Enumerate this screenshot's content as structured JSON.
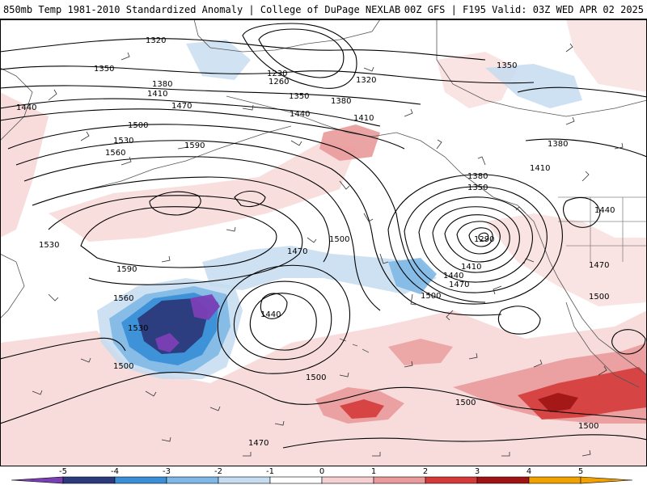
{
  "header": {
    "title_left": "850mb Temp 1981-2010 Standardized Anomaly | College of DuPage NEXLAB",
    "title_right": "00Z GFS | F195 Valid: 03Z WED APR 02 2025"
  },
  "contour_labels": [
    {
      "id": "h1320a",
      "text": "1320"
    },
    {
      "id": "h1350a",
      "text": "1350"
    },
    {
      "id": "h1230",
      "text": "1230"
    },
    {
      "id": "h1260",
      "text": "1260"
    },
    {
      "id": "h1320b",
      "text": "1320"
    },
    {
      "id": "h1350b",
      "text": "1350"
    },
    {
      "id": "h1380a",
      "text": "1380"
    },
    {
      "id": "h1410a",
      "text": "1410"
    },
    {
      "id": "h1440a",
      "text": "1440"
    },
    {
      "id": "h1470a",
      "text": "1470"
    },
    {
      "id": "h1350c",
      "text": "1350"
    },
    {
      "id": "h1380b",
      "text": "1380"
    },
    {
      "id": "h1440b",
      "text": "1440"
    },
    {
      "id": "h1410b",
      "text": "1410"
    },
    {
      "id": "h1500a",
      "text": "1500"
    },
    {
      "id": "h1530a",
      "text": "1530"
    },
    {
      "id": "h1560a",
      "text": "1560"
    },
    {
      "id": "h1590a",
      "text": "1590"
    },
    {
      "id": "h1380c",
      "text": "1380"
    },
    {
      "id": "h1410c",
      "text": "1410"
    },
    {
      "id": "h1380d",
      "text": "1380"
    },
    {
      "id": "h1350d",
      "text": "1350"
    },
    {
      "id": "h1440c",
      "text": "1440"
    },
    {
      "id": "h1290",
      "text": "1290"
    },
    {
      "id": "h1530b",
      "text": "1530"
    },
    {
      "id": "h1500b",
      "text": "1500"
    },
    {
      "id": "h1590b",
      "text": "1590"
    },
    {
      "id": "h1470b",
      "text": "1470"
    },
    {
      "id": "h1410d",
      "text": "1410"
    },
    {
      "id": "h1440d",
      "text": "1440"
    },
    {
      "id": "h1470c",
      "text": "1470"
    },
    {
      "id": "h1470d",
      "text": "1470"
    },
    {
      "id": "h1500c",
      "text": "1500"
    },
    {
      "id": "h1560b",
      "text": "1560"
    },
    {
      "id": "h1440e",
      "text": "1440"
    },
    {
      "id": "h1530c",
      "text": "1530"
    },
    {
      "id": "h1500d",
      "text": "1500"
    },
    {
      "id": "h1500e",
      "text": "1500"
    },
    {
      "id": "h1500f",
      "text": "1500"
    },
    {
      "id": "h1500g",
      "text": "1500"
    },
    {
      "id": "h1500h",
      "text": "1500"
    },
    {
      "id": "h1470e",
      "text": "1470"
    }
  ],
  "colorbar": {
    "ticks": [
      "-5",
      "-4",
      "-3",
      "-2",
      "-1",
      "0",
      "1",
      "2",
      "3",
      "4",
      "5"
    ],
    "colors": [
      "#7b3fb5",
      "#2b3a7a",
      "#3a8fd6",
      "#7fb8e6",
      "#c6dcf0",
      "#ffffff",
      "#f6d0d0",
      "#e99a9a",
      "#d43a3a",
      "#9e1414",
      "#f2a200"
    ]
  },
  "anomaly_colors": {
    "cold_extreme": "#7b3fb5",
    "cold_deep": "#2b3a7a",
    "cold_strong": "#3a8fd6",
    "cold_moderate": "#7fb8e6",
    "cold_weak": "#c6dcf0",
    "warm_weak": "#f6d0d0",
    "warm_moderate": "#e99a9a",
    "warm_strong": "#d43a3a",
    "warm_deep": "#9e1414"
  }
}
